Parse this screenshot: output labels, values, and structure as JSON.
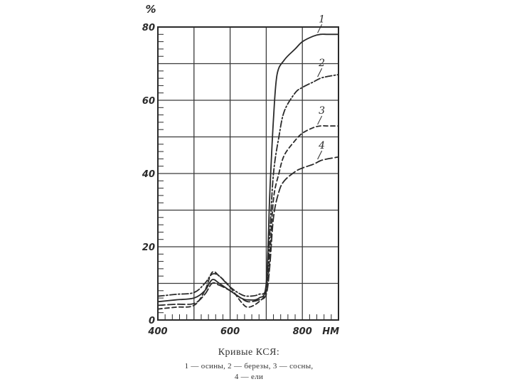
{
  "chart_data": {
    "type": "line",
    "ylabel": "%",
    "xunit": "НМ",
    "xlim": [
      400,
      900
    ],
    "ylim": [
      0,
      80
    ],
    "x_ticks": [
      {
        "value": 400,
        "label": "400"
      },
      {
        "value": 600,
        "label": "600"
      },
      {
        "value": 800,
        "label": "800"
      }
    ],
    "y_ticks": [
      {
        "value": 0,
        "label": "0"
      },
      {
        "value": 20,
        "label": "20"
      },
      {
        "value": 40,
        "label": "40"
      },
      {
        "value": 60,
        "label": "60"
      },
      {
        "value": 80,
        "label": "80"
      }
    ],
    "grid": true,
    "series": [
      {
        "name": "1",
        "style": "solid",
        "x": [
          400,
          450,
          500,
          530,
          550,
          570,
          600,
          630,
          650,
          680,
          700,
          710,
          720,
          730,
          750,
          780,
          800,
          830,
          850,
          870,
          900
        ],
        "y": [
          5,
          5.5,
          6,
          8,
          11,
          10,
          8,
          6,
          5.5,
          6,
          10,
          35,
          55,
          67,
          71,
          74,
          76,
          77.5,
          78,
          78,
          78
        ]
      },
      {
        "name": "2",
        "style": "dash-dot",
        "x": [
          400,
          450,
          500,
          530,
          550,
          570,
          600,
          630,
          650,
          680,
          700,
          710,
          720,
          735,
          750,
          780,
          800,
          830,
          850,
          870,
          900
        ],
        "y": [
          6.5,
          7,
          7.5,
          10,
          12.5,
          12,
          9,
          7,
          6.5,
          7,
          9,
          24,
          40,
          50,
          57,
          62,
          63.5,
          65,
          66,
          66.5,
          67
        ]
      },
      {
        "name": "3",
        "style": "dashed",
        "x": [
          400,
          450,
          500,
          530,
          550,
          570,
          600,
          630,
          650,
          680,
          700,
          710,
          720,
          735,
          750,
          780,
          800,
          830,
          850,
          870,
          900
        ],
        "y": [
          3,
          3.5,
          4,
          8,
          13,
          12,
          9,
          5,
          3.5,
          5,
          8,
          18,
          33,
          40,
          45,
          49,
          51,
          52.5,
          53,
          53,
          53
        ]
      },
      {
        "name": "4",
        "style": "long-dash",
        "x": [
          400,
          450,
          500,
          530,
          550,
          570,
          600,
          630,
          650,
          680,
          700,
          710,
          720,
          735,
          750,
          780,
          800,
          830,
          850,
          870,
          900
        ],
        "y": [
          4,
          4.3,
          4.5,
          7,
          10,
          9.5,
          8,
          6,
          5,
          5.5,
          7,
          15,
          28,
          35,
          38,
          40.5,
          41.5,
          42.5,
          43.5,
          44,
          44.5
        ]
      }
    ],
    "annotations": [
      {
        "text": "1",
        "series": "1"
      },
      {
        "text": "2",
        "series": "2"
      },
      {
        "text": "3",
        "series": "3"
      },
      {
        "text": "4",
        "series": "4"
      }
    ]
  },
  "caption": {
    "title": "Кривые КСЯ:",
    "line1": "1 — осины,   2 — березы,   3 — сосны,",
    "line2": "4 — ели"
  },
  "colors": {
    "ink": "#2a2a2a",
    "grid": "#3a3a3a"
  }
}
